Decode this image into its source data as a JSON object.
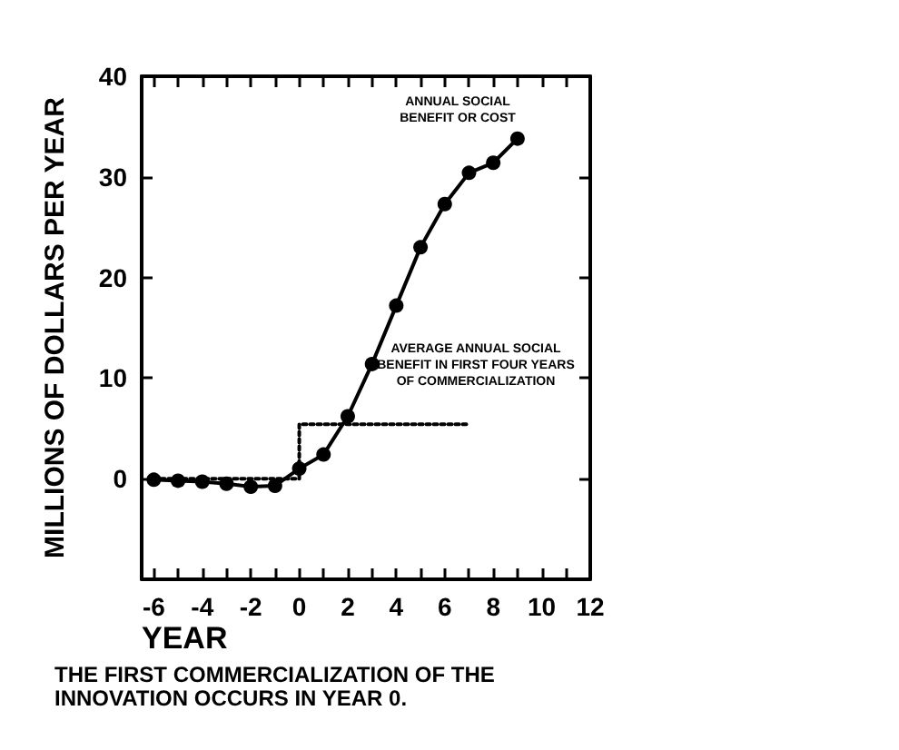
{
  "chart_data": {
    "type": "line",
    "xlabel": "YEAR",
    "ylabel": "MILLIONS OF DOLLARS PER YEAR",
    "annotations": [
      "ANNUAL SOCIAL\nBENEFIT OR COST",
      "AVERAGE ANNUAL SOCIAL\nBENEFIT IN FIRST FOUR YEARS\nOF COMMERCIALIZATION",
      "THE FIRST COMMERCIALIZATION OF THE\nINNOVATION OCCURS IN YEAR 0."
    ],
    "series": [
      {
        "color": "#000000",
        "marker": "circle",
        "line_style": "solid",
        "x": [
          -6,
          -5,
          -4,
          -3,
          -2,
          -1,
          0,
          1,
          2,
          3,
          4,
          5,
          6,
          7,
          8,
          9
        ],
        "values": [
          -0.1,
          -0.2,
          -0.3,
          -0.5,
          -0.8,
          -0.7,
          1.0,
          2.4,
          6.2,
          11.4,
          17.2,
          23.0,
          27.3,
          30.4,
          31.4,
          33.8
        ]
      },
      {
        "color": "#000000",
        "marker": "none",
        "line_style": "dotted",
        "x": [
          -6,
          0,
          0,
          7
        ],
        "values": [
          0,
          0,
          5.4,
          5.4
        ]
      }
    ],
    "xlim": [
      -6.5,
      12
    ],
    "xticks": [
      -6,
      {
        "value": -5,
        "label": null
      },
      -4,
      {
        "value": -3,
        "label": null
      },
      -2,
      {
        "value": -1,
        "label": null
      },
      0,
      {
        "value": 1,
        "label": null
      },
      2,
      {
        "value": 3,
        "label": null
      },
      4,
      {
        "value": 5,
        "label": null
      },
      6,
      {
        "value": 7,
        "label": null
      },
      8,
      {
        "value": 9,
        "label": null
      },
      10,
      {
        "value": 11,
        "label": null
      },
      12
    ],
    "ylim": [
      -10,
      40
    ],
    "yticks": [
      0,
      10,
      20,
      30,
      40
    ],
    "grid": false
  }
}
